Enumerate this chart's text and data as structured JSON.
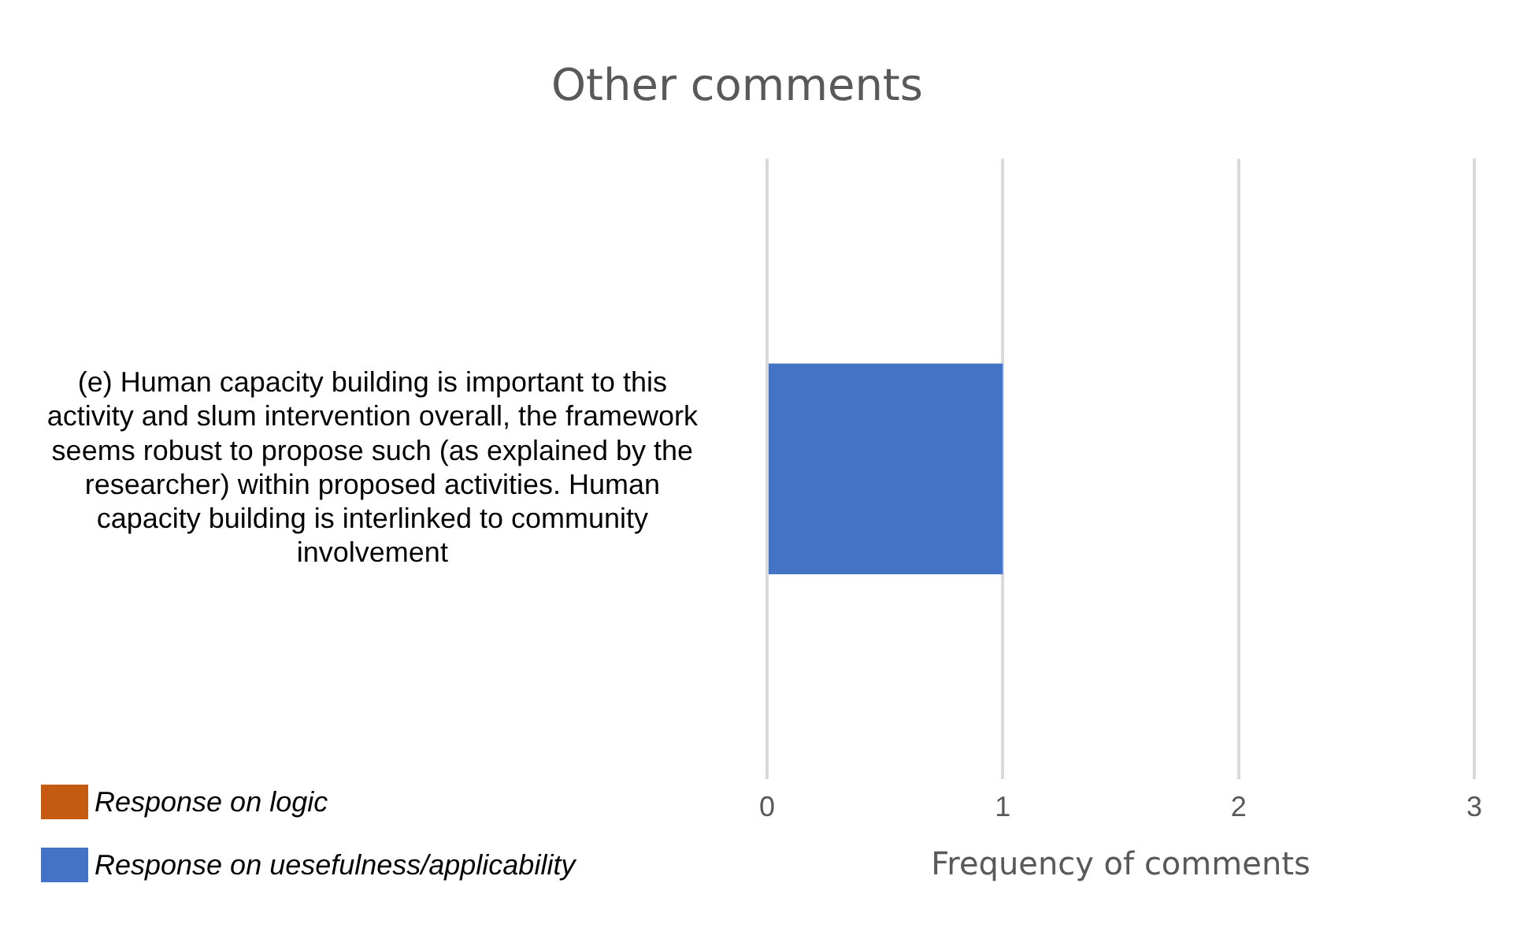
{
  "chart_data": {
    "type": "bar",
    "orientation": "horizontal",
    "title": "Other comments",
    "xlabel": "Frequency of comments",
    "categories": [
      "(e) Human capacity building is important to this activity and slum intervention overall, the framework seems robust to propose such (as explained by the researcher) within proposed activities. Human capacity building is interlinked to community involvement"
    ],
    "series": [
      {
        "name": "Response on logic",
        "color": "#c55a11",
        "values": [
          null
        ]
      },
      {
        "name": "Response on uesefulness/applicability",
        "color": "#4472c4",
        "values": [
          1
        ]
      }
    ],
    "xlim": [
      0,
      3
    ],
    "xticks": [
      0,
      1,
      2,
      3
    ],
    "grid": "x",
    "legend": "bottom left"
  }
}
